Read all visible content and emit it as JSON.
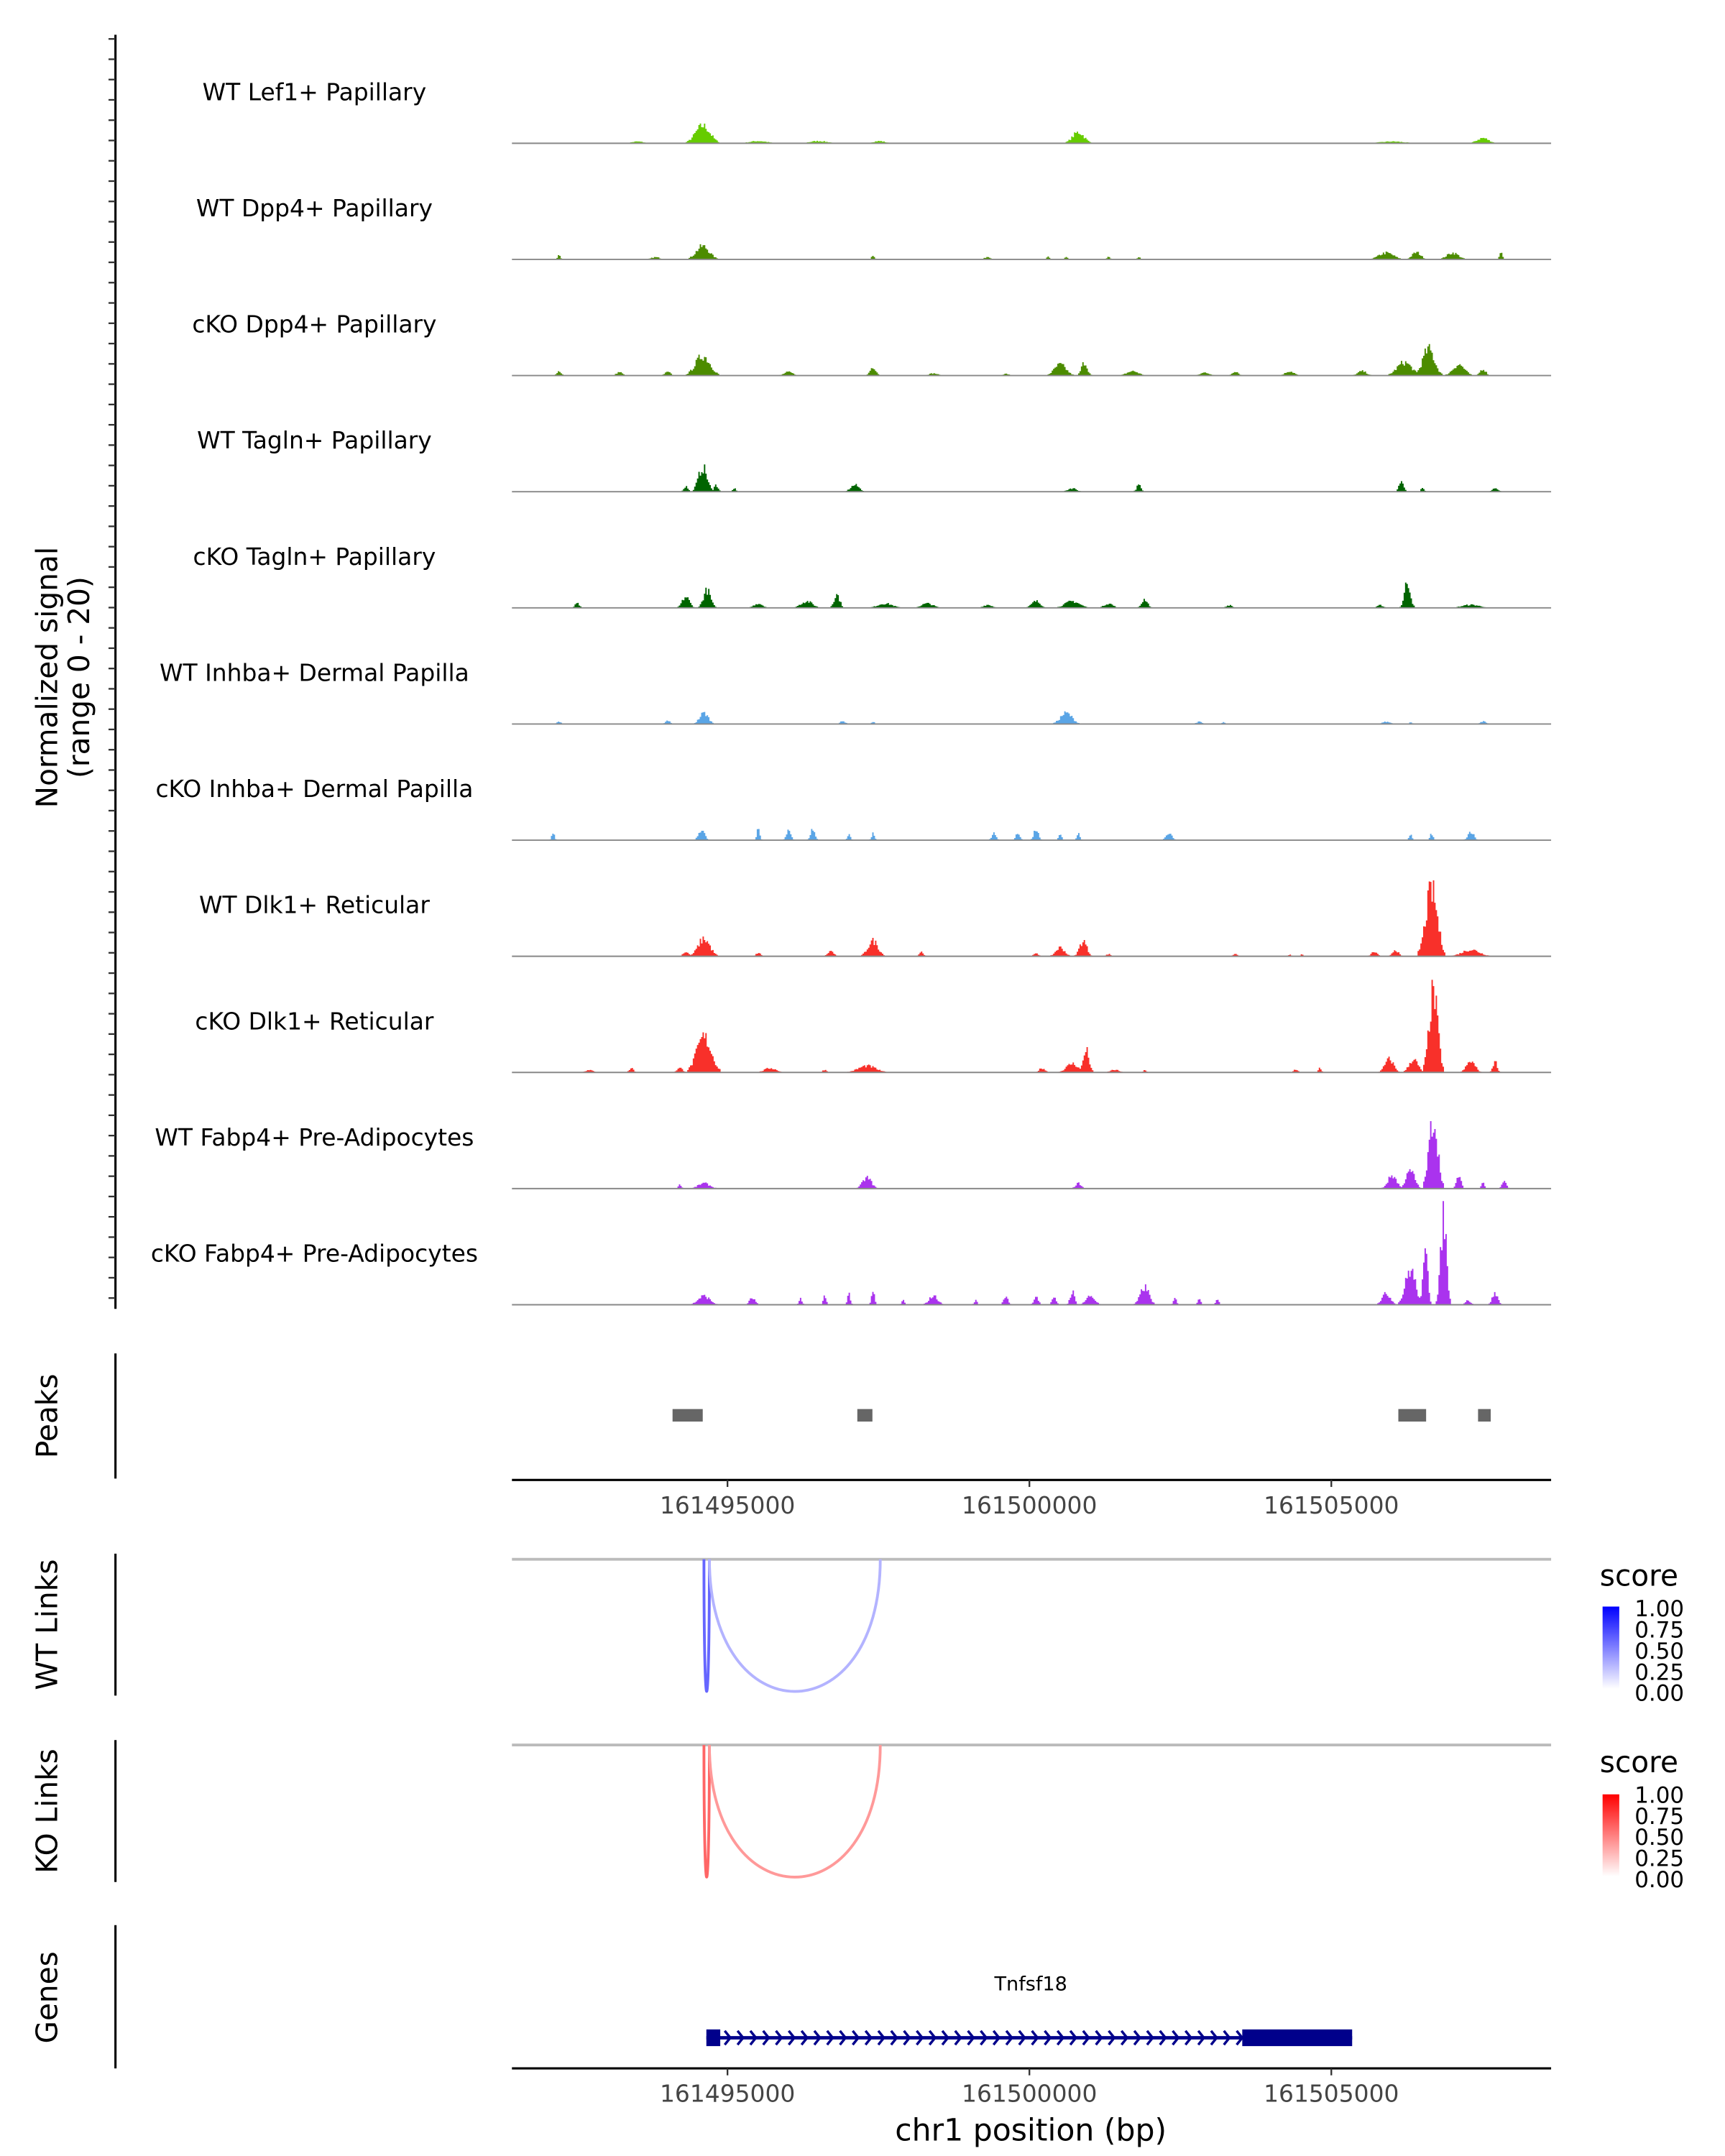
{
  "chart_data": {
    "type": "area",
    "title": "",
    "ylabel": "Normalized signal",
    "ylabel_range": "(range 0 - 20)",
    "ylim": [
      0,
      20
    ],
    "xlabel": "chr1 position (bp)",
    "xlim": [
      161491430,
      161508640
    ],
    "xticks": [
      161495000,
      161500000,
      161505000
    ],
    "xtick_labels": [
      "161495000",
      "161500000",
      "161505000"
    ],
    "coverage_tracks": [
      {
        "name": "WT Lef1+ Papillary",
        "color": "#66cc00",
        "peaks": [
          [
            161493500,
            0.4,
            400
          ],
          [
            161494580,
            4,
            500
          ],
          [
            161495500,
            0.5,
            600
          ],
          [
            161496500,
            0.5,
            600
          ],
          [
            161497500,
            0.5,
            400
          ],
          [
            161500800,
            2.5,
            400
          ],
          [
            161506000,
            0.4,
            800
          ],
          [
            161507500,
            1.2,
            400
          ]
        ]
      },
      {
        "name": "WT Dpp4+ Papillary",
        "color": "#4c8c00",
        "peaks": [
          [
            161492200,
            1,
            100
          ],
          [
            161493800,
            0.5,
            300
          ],
          [
            161494580,
            3,
            450
          ],
          [
            161497400,
            1,
            100
          ],
          [
            161499300,
            0.6,
            200
          ],
          [
            161500300,
            0.6,
            100
          ],
          [
            161500600,
            0.6,
            100
          ],
          [
            161501300,
            0.6,
            100
          ],
          [
            161501800,
            0.5,
            100
          ],
          [
            161505900,
            1.5,
            500
          ],
          [
            161506400,
            1.6,
            300
          ],
          [
            161507000,
            1.5,
            400
          ],
          [
            161507800,
            1.5,
            100
          ]
        ]
      },
      {
        "name": "cKO Dpp4+ Papillary",
        "color": "#4c8c00",
        "peaks": [
          [
            161492200,
            1,
            150
          ],
          [
            161493200,
            0.8,
            200
          ],
          [
            161494000,
            0.8,
            200
          ],
          [
            161494580,
            4.5,
            500
          ],
          [
            161496000,
            0.8,
            300
          ],
          [
            161497400,
            2,
            200
          ],
          [
            161498400,
            0.5,
            300
          ],
          [
            161499600,
            0.4,
            200
          ],
          [
            161500500,
            2.5,
            400
          ],
          [
            161500900,
            3,
            200
          ],
          [
            161501700,
            1,
            400
          ],
          [
            161502900,
            0.7,
            300
          ],
          [
            161503400,
            1,
            200
          ],
          [
            161504300,
            1,
            300
          ],
          [
            161505500,
            1,
            300
          ],
          [
            161506200,
            3,
            500
          ],
          [
            161506600,
            6,
            400
          ],
          [
            161507100,
            2.5,
            400
          ],
          [
            161507500,
            1.5,
            200
          ]
        ]
      },
      {
        "name": "WT Tagln+ Papillary",
        "color": "#006400",
        "peaks": [
          [
            161494300,
            1.2,
            150
          ],
          [
            161494580,
            5.5,
            300
          ],
          [
            161494800,
            1.5,
            150
          ],
          [
            161495100,
            0.8,
            100
          ],
          [
            161497100,
            1.5,
            300
          ],
          [
            161500700,
            0.8,
            300
          ],
          [
            161501800,
            1.5,
            150
          ],
          [
            161506150,
            3,
            150
          ],
          [
            161506500,
            1,
            100
          ],
          [
            161507700,
            0.8,
            200
          ]
        ]
      },
      {
        "name": "cKO Tagln+ Papillary",
        "color": "#006400",
        "peaks": [
          [
            161492500,
            1,
            150
          ],
          [
            161494300,
            2.5,
            250
          ],
          [
            161494650,
            4,
            250
          ],
          [
            161495500,
            1,
            300
          ],
          [
            161496300,
            1.5,
            400
          ],
          [
            161496800,
            3,
            200
          ],
          [
            161497600,
            1,
            500
          ],
          [
            161498300,
            1,
            400
          ],
          [
            161499300,
            0.7,
            300
          ],
          [
            161500100,
            1.5,
            300
          ],
          [
            161500700,
            1.5,
            500
          ],
          [
            161501300,
            1,
            300
          ],
          [
            161501900,
            2,
            200
          ],
          [
            161503300,
            0.6,
            200
          ],
          [
            161505800,
            0.6,
            200
          ],
          [
            161506250,
            6,
            200
          ],
          [
            161507300,
            0.7,
            600
          ]
        ]
      },
      {
        "name": "WT Inhba+ Dermal Papilla",
        "color": "#5aa5e6",
        "peaks": [
          [
            161492200,
            0.5,
            150
          ],
          [
            161494000,
            0.8,
            150
          ],
          [
            161494600,
            2.5,
            300
          ],
          [
            161496900,
            0.6,
            200
          ],
          [
            161497400,
            0.5,
            100
          ],
          [
            161500600,
            2.5,
            400
          ],
          [
            161502800,
            0.5,
            200
          ],
          [
            161503200,
            0.4,
            100
          ],
          [
            161505900,
            0.5,
            300
          ],
          [
            161506300,
            0.5,
            100
          ],
          [
            161507500,
            0.6,
            200
          ]
        ]
      },
      {
        "name": "cKO Inhba+ Dermal Papilla",
        "color": "#5aa5e6",
        "peaks": [
          [
            161492100,
            1.5,
            100
          ],
          [
            161494560,
            2.5,
            200
          ],
          [
            161495500,
            2.5,
            100
          ],
          [
            161496000,
            2.5,
            150
          ],
          [
            161496400,
            2.5,
            150
          ],
          [
            161497000,
            1.5,
            100
          ],
          [
            161497400,
            1.5,
            100
          ],
          [
            161499400,
            1.5,
            150
          ],
          [
            161499800,
            1.5,
            150
          ],
          [
            161500100,
            2.5,
            150
          ],
          [
            161500500,
            1.5,
            100
          ],
          [
            161500800,
            1.5,
            100
          ],
          [
            161502300,
            1.5,
            200
          ],
          [
            161506300,
            1.2,
            100
          ],
          [
            161506650,
            1.5,
            100
          ],
          [
            161507300,
            2,
            200
          ]
        ]
      },
      {
        "name": "WT Dlk1+ Reticular",
        "color": "#f8302a",
        "peaks": [
          [
            161494300,
            1,
            200
          ],
          [
            161494600,
            4,
            400
          ],
          [
            161495500,
            0.8,
            150
          ],
          [
            161496700,
            1.2,
            200
          ],
          [
            161497400,
            3.5,
            350
          ],
          [
            161498200,
            1,
            150
          ],
          [
            161500100,
            0.8,
            150
          ],
          [
            161500500,
            2,
            300
          ],
          [
            161500880,
            3.5,
            250
          ],
          [
            161501300,
            0.5,
            150
          ],
          [
            161503400,
            0.6,
            150
          ],
          [
            161504300,
            0.4,
            100
          ],
          [
            161504500,
            0.4,
            100
          ],
          [
            161505700,
            1,
            200
          ],
          [
            161506050,
            1.5,
            200
          ],
          [
            161506650,
            15,
            400
          ],
          [
            161507300,
            1.5,
            600
          ]
        ]
      },
      {
        "name": "cKO Dlk1+ Reticular",
        "color": "#f8302a",
        "peaks": [
          [
            161492700,
            0.5,
            300
          ],
          [
            161493400,
            1,
            150
          ],
          [
            161494200,
            1,
            200
          ],
          [
            161494600,
            8,
            500
          ],
          [
            161495700,
            1,
            400
          ],
          [
            161496600,
            0.6,
            150
          ],
          [
            161497300,
            1.5,
            600
          ],
          [
            161500200,
            1,
            200
          ],
          [
            161500700,
            2,
            400
          ],
          [
            161500930,
            5,
            200
          ],
          [
            161501400,
            0.6,
            300
          ],
          [
            161501900,
            0.5,
            100
          ],
          [
            161504400,
            0.7,
            150
          ],
          [
            161504800,
            1,
            100
          ],
          [
            161505950,
            3,
            300
          ],
          [
            161506350,
            3,
            300
          ],
          [
            161506680,
            18,
            300
          ],
          [
            161507300,
            2.5,
            300
          ],
          [
            161507700,
            2.5,
            150
          ]
        ]
      },
      {
        "name": "WT Fabp4+ Pre-Adipocytes",
        "color": "#aa33ee",
        "peaks": [
          [
            161494200,
            1,
            100
          ],
          [
            161494600,
            1.2,
            400
          ],
          [
            161497300,
            2.5,
            300
          ],
          [
            161500800,
            1.2,
            200
          ],
          [
            161506000,
            3,
            300
          ],
          [
            161506300,
            4,
            300
          ],
          [
            161506680,
            16,
            300
          ],
          [
            161507100,
            3,
            150
          ],
          [
            161507500,
            1.5,
            100
          ],
          [
            161507850,
            2,
            150
          ]
        ]
      },
      {
        "name": "cKO Fabp4+ Pre-Adipocytes",
        "color": "#aa33ee",
        "peaks": [
          [
            161494600,
            2,
            400
          ],
          [
            161495400,
            1.5,
            200
          ],
          [
            161496200,
            1.5,
            100
          ],
          [
            161496600,
            2,
            100
          ],
          [
            161497000,
            2.5,
            100
          ],
          [
            161497400,
            3,
            100
          ],
          [
            161497900,
            1,
            100
          ],
          [
            161498400,
            2,
            300
          ],
          [
            161499100,
            1,
            100
          ],
          [
            161499600,
            2,
            150
          ],
          [
            161500100,
            2,
            150
          ],
          [
            161500400,
            1.5,
            150
          ],
          [
            161500700,
            3,
            150
          ],
          [
            161501000,
            2,
            300
          ],
          [
            161501900,
            4,
            300
          ],
          [
            161502400,
            1.5,
            100
          ],
          [
            161502800,
            1.5,
            100
          ],
          [
            161503100,
            1.5,
            100
          ],
          [
            161505900,
            2.5,
            300
          ],
          [
            161506300,
            8,
            350
          ],
          [
            161506550,
            16,
            150
          ],
          [
            161506850,
            20,
            200
          ],
          [
            161507250,
            1,
            200
          ],
          [
            161507700,
            2.5,
            200
          ]
        ]
      }
    ],
    "peaks_track": {
      "label": "Peaks",
      "color": "#666666",
      "regions": [
        [
          161494090,
          161494590
        ],
        [
          161497150,
          161497400
        ],
        [
          161506110,
          161506570
        ],
        [
          161507430,
          161507640
        ]
      ]
    },
    "link_tracks": [
      {
        "label": "WT Links",
        "legend_title": "score",
        "low_color": "#ffffff",
        "high_color": "#0000ff",
        "links": [
          {
            "start": 161494610,
            "end": 161494700,
            "score": 0.6
          },
          {
            "start": 161494700,
            "end": 161497530,
            "score": 0.3
          }
        ]
      },
      {
        "label": "KO Links",
        "legend_title": "score",
        "low_color": "#ffffff",
        "high_color": "#ff0000",
        "links": [
          {
            "start": 161494610,
            "end": 161494700,
            "score": 0.6
          },
          {
            "start": 161494700,
            "end": 161497530,
            "score": 0.4
          }
        ]
      }
    ],
    "legend_ticks": [
      "1.00",
      "0.75",
      "0.50",
      "0.25",
      "0.00"
    ],
    "genes_track": {
      "label": "Genes",
      "color": "#00008b",
      "genes": [
        {
          "name": "Tnfsf18",
          "start": 161494650,
          "end": 161505345,
          "strand": "+",
          "exons": [
            [
              161494650,
              161494880
            ],
            [
              161503525,
              161505345
            ]
          ]
        }
      ]
    }
  }
}
